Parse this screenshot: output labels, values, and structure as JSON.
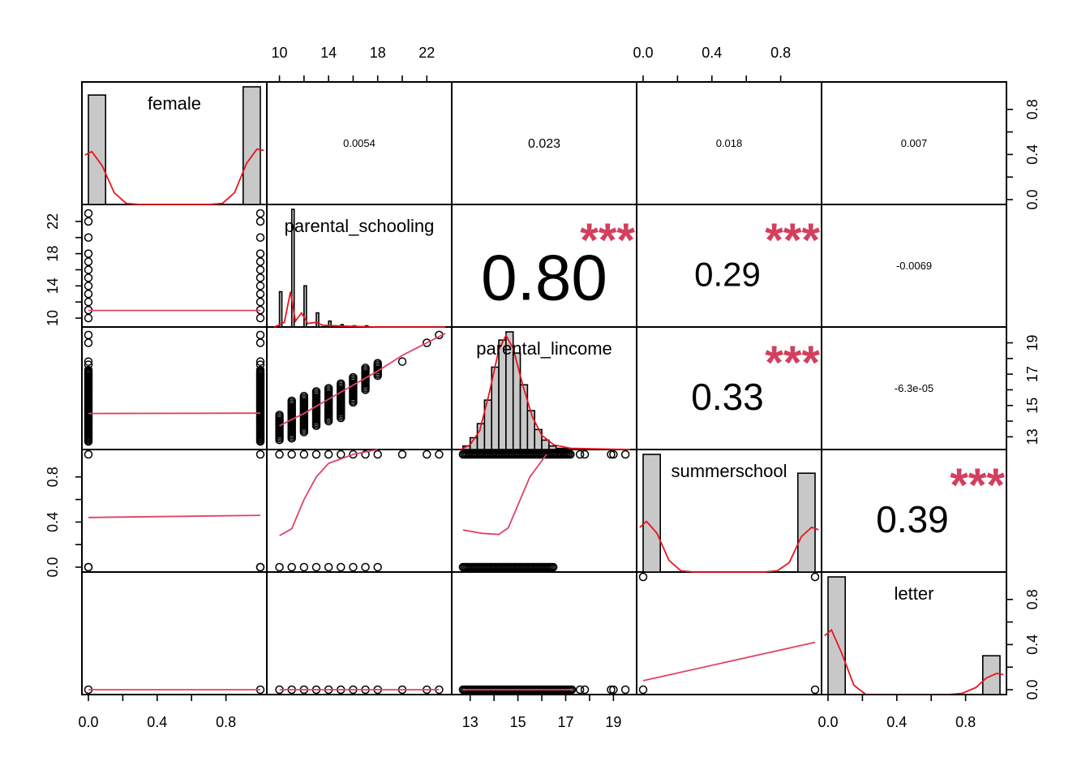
{
  "chart_data": {
    "type": "scatter",
    "title": "",
    "variables": [
      {
        "name": "female",
        "range": [
          0,
          1
        ],
        "ticks": [
          0.0,
          0.4,
          0.8
        ],
        "tick_labels": [
          "0.0",
          "0.4",
          "0.8"
        ]
      },
      {
        "name": "parental_schooling",
        "range": [
          9.5,
          23.5
        ],
        "ticks": [
          10,
          14,
          18,
          22
        ],
        "tick_labels": [
          "10",
          "14",
          "18",
          "22"
        ]
      },
      {
        "name": "parental_lincome",
        "range": [
          12.5,
          19.7
        ],
        "ticks": [
          13,
          15,
          17,
          19
        ],
        "tick_labels": [
          "13",
          "15",
          "17",
          "19"
        ]
      },
      {
        "name": "summerschool",
        "range": [
          0,
          1
        ],
        "ticks": [
          0.0,
          0.4,
          0.8
        ],
        "tick_labels": [
          "0.0",
          "0.4",
          "0.8"
        ]
      },
      {
        "name": "letter",
        "range": [
          0,
          1
        ],
        "ticks": [
          0.0,
          0.4,
          0.8
        ],
        "tick_labels": [
          "0.0",
          "0.4",
          "0.8"
        ]
      }
    ],
    "correlations": [
      {
        "row": 0,
        "col": 1,
        "value": "0.0054",
        "stars": ""
      },
      {
        "row": 0,
        "col": 2,
        "value": "0.023",
        "stars": ""
      },
      {
        "row": 0,
        "col": 3,
        "value": "0.018",
        "stars": ""
      },
      {
        "row": 0,
        "col": 4,
        "value": "0.007",
        "stars": ""
      },
      {
        "row": 1,
        "col": 2,
        "value": "0.80",
        "stars": "***"
      },
      {
        "row": 1,
        "col": 3,
        "value": "0.29",
        "stars": "***"
      },
      {
        "row": 1,
        "col": 4,
        "value": "-0.0069",
        "stars": ""
      },
      {
        "row": 2,
        "col": 3,
        "value": "0.33",
        "stars": "***"
      },
      {
        "row": 2,
        "col": 4,
        "value": "-6.3e-05",
        "stars": ""
      },
      {
        "row": 3,
        "col": 4,
        "value": "0.39",
        "stars": "***"
      }
    ],
    "histograms": {
      "female": {
        "bins": [
          [
            0,
            0.1,
            0.93
          ],
          [
            0.9,
            1.0,
            1.0
          ]
        ],
        "density": [
          [
            -0.02,
            0.42
          ],
          [
            0.02,
            0.45
          ],
          [
            0.08,
            0.33
          ],
          [
            0.15,
            0.1
          ],
          [
            0.22,
            0.01
          ],
          [
            0.3,
            0.0
          ],
          [
            0.7,
            0.0
          ],
          [
            0.78,
            0.01
          ],
          [
            0.85,
            0.1
          ],
          [
            0.92,
            0.35
          ],
          [
            0.98,
            0.47
          ],
          [
            1.02,
            0.46
          ]
        ]
      },
      "parental_schooling": {
        "bins": [
          [
            10.0,
            10.2,
            0.3
          ],
          [
            11.0,
            11.2,
            1.0
          ],
          [
            12.0,
            12.2,
            0.35
          ],
          [
            13.0,
            13.2,
            0.12
          ],
          [
            14.0,
            14.2,
            0.05
          ],
          [
            15.0,
            15.2,
            0.02
          ],
          [
            16.0,
            16.2,
            0.01
          ],
          [
            17.0,
            17.2,
            0.01
          ]
        ],
        "density": [
          [
            9.6,
            0.0
          ],
          [
            10.0,
            0.02
          ],
          [
            10.4,
            0.04
          ],
          [
            10.9,
            0.3
          ],
          [
            11.3,
            0.05
          ],
          [
            11.8,
            0.12
          ],
          [
            12.3,
            0.03
          ],
          [
            13.0,
            0.04
          ],
          [
            13.5,
            0.015
          ],
          [
            15.0,
            0.008
          ],
          [
            18.0,
            0.0
          ],
          [
            23.5,
            0.0
          ]
        ]
      },
      "parental_lincome": {
        "bins": [
          [
            12.7,
            13.0,
            0.03
          ],
          [
            13.0,
            13.3,
            0.1
          ],
          [
            13.3,
            13.6,
            0.22
          ],
          [
            13.6,
            13.9,
            0.42
          ],
          [
            13.9,
            14.2,
            0.7
          ],
          [
            14.2,
            14.5,
            0.93
          ],
          [
            14.5,
            14.8,
            1.0
          ],
          [
            14.8,
            15.1,
            0.82
          ],
          [
            15.1,
            15.4,
            0.55
          ],
          [
            15.4,
            15.7,
            0.33
          ],
          [
            15.7,
            16.0,
            0.17
          ],
          [
            16.0,
            16.3,
            0.08
          ],
          [
            16.3,
            16.6,
            0.03
          ],
          [
            16.6,
            17.2,
            0.01
          ]
        ],
        "density": [
          [
            12.6,
            0.0
          ],
          [
            13.0,
            0.04
          ],
          [
            13.4,
            0.16
          ],
          [
            13.8,
            0.48
          ],
          [
            14.2,
            0.85
          ],
          [
            14.5,
            0.97
          ],
          [
            14.8,
            0.86
          ],
          [
            15.2,
            0.55
          ],
          [
            15.6,
            0.28
          ],
          [
            16.0,
            0.12
          ],
          [
            16.5,
            0.04
          ],
          [
            17.2,
            0.01
          ],
          [
            19.7,
            0.0
          ]
        ]
      },
      "summerschool": {
        "bins": [
          [
            0,
            0.1,
            1.0
          ],
          [
            0.9,
            1.0,
            0.84
          ]
        ],
        "density": [
          [
            -0.02,
            0.38
          ],
          [
            0.02,
            0.43
          ],
          [
            0.08,
            0.33
          ],
          [
            0.15,
            0.1
          ],
          [
            0.22,
            0.01
          ],
          [
            0.3,
            0.0
          ],
          [
            0.7,
            0.0
          ],
          [
            0.78,
            0.01
          ],
          [
            0.85,
            0.08
          ],
          [
            0.92,
            0.3
          ],
          [
            0.98,
            0.38
          ],
          [
            1.02,
            0.36
          ]
        ]
      },
      "letter": {
        "bins": [
          [
            0,
            0.1,
            1.0
          ],
          [
            0.9,
            1.0,
            0.33
          ]
        ],
        "density": [
          [
            -0.02,
            0.5
          ],
          [
            0.02,
            0.55
          ],
          [
            0.08,
            0.35
          ],
          [
            0.15,
            0.08
          ],
          [
            0.22,
            0.0
          ],
          [
            0.7,
            0.0
          ],
          [
            0.78,
            0.01
          ],
          [
            0.86,
            0.06
          ],
          [
            0.92,
            0.14
          ],
          [
            0.98,
            0.18
          ],
          [
            1.02,
            0.17
          ]
        ]
      }
    },
    "scatter_points": {
      "female": [
        0,
        1
      ],
      "parental_schooling": [
        10,
        11,
        12,
        13,
        14,
        15,
        16,
        17,
        18,
        20,
        22,
        23
      ],
      "parental_lincome": {
        "min": 12.7,
        "max": 17.3,
        "outliers": [
          17.6,
          17.8,
          18.9,
          19.0,
          19.5
        ]
      },
      "summerschool": [
        0,
        1
      ],
      "letter": [
        0,
        1
      ],
      "schooling_vs_lincome": [
        [
          10,
          12.8,
          14.4
        ],
        [
          11,
          12.9,
          15.3
        ],
        [
          12,
          13.3,
          15.6
        ],
        [
          13,
          13.7,
          15.9
        ],
        [
          14,
          14.0,
          16.1
        ],
        [
          15,
          14.2,
          16.4
        ],
        [
          16,
          15.2,
          16.9
        ],
        [
          17,
          16.0,
          17.5
        ],
        [
          18,
          16.9,
          17.8
        ],
        [
          20,
          17.8,
          17.8
        ],
        [
          22,
          19.0,
          19.0
        ],
        [
          23,
          19.5,
          19.5
        ]
      ],
      "schooling_vs_summerschool": {
        "y0": [
          10,
          11,
          12,
          13,
          14,
          15,
          16,
          17,
          18
        ],
        "y1": [
          10,
          11,
          12,
          13,
          14,
          15,
          16,
          17,
          18,
          20,
          22,
          23
        ]
      },
      "lincome_vs_summerschool": {
        "y0": [
          12.7,
          16.5
        ],
        "y1": [
          12.7,
          17.2
        ]
      },
      "lincome_extra": [
        17.6,
        17.8,
        18.9,
        19.0,
        19.5
      ]
    },
    "fit_lines": {
      "female_vs_parental_schooling": [
        [
          0,
          10.95
        ],
        [
          1,
          10.95
        ]
      ],
      "female_vs_parental_lincome": [
        [
          0,
          14.49
        ],
        [
          1,
          14.51
        ]
      ],
      "female_vs_summerschool": [
        [
          0,
          0.44
        ],
        [
          1,
          0.46
        ]
      ],
      "female_vs_letter": [
        [
          0,
          0.0
        ],
        [
          1,
          0.0
        ]
      ],
      "schooling_vs_lincome": [
        [
          10,
          13.7
        ],
        [
          11,
          14.1
        ],
        [
          12,
          14.5
        ],
        [
          13,
          14.95
        ],
        [
          14,
          15.4
        ],
        [
          16,
          16.3
        ],
        [
          18,
          17.2
        ],
        [
          20,
          18.2
        ],
        [
          22,
          19.0
        ],
        [
          23.5,
          19.6
        ]
      ],
      "schooling_vs_summerschool": [
        [
          10,
          0.28
        ],
        [
          11,
          0.34
        ],
        [
          12,
          0.6
        ],
        [
          13,
          0.8
        ],
        [
          14,
          0.92
        ],
        [
          16,
          1.0
        ],
        [
          18,
          1.05
        ]
      ],
      "schooling_vs_letter": [
        [
          10,
          0.0
        ],
        [
          23,
          0.0
        ]
      ],
      "lincome_vs_summerschool": [
        [
          12.7,
          0.33
        ],
        [
          13.5,
          0.3
        ],
        [
          14.2,
          0.29
        ],
        [
          14.6,
          0.35
        ],
        [
          15.0,
          0.55
        ],
        [
          15.5,
          0.8
        ],
        [
          16.2,
          1.0
        ]
      ],
      "lincome_vs_letter": [
        [
          12.7,
          0.0
        ],
        [
          17.3,
          0.0
        ]
      ],
      "summerschool_vs_letter": [
        [
          0,
          0.08
        ],
        [
          1,
          0.42
        ]
      ]
    }
  }
}
